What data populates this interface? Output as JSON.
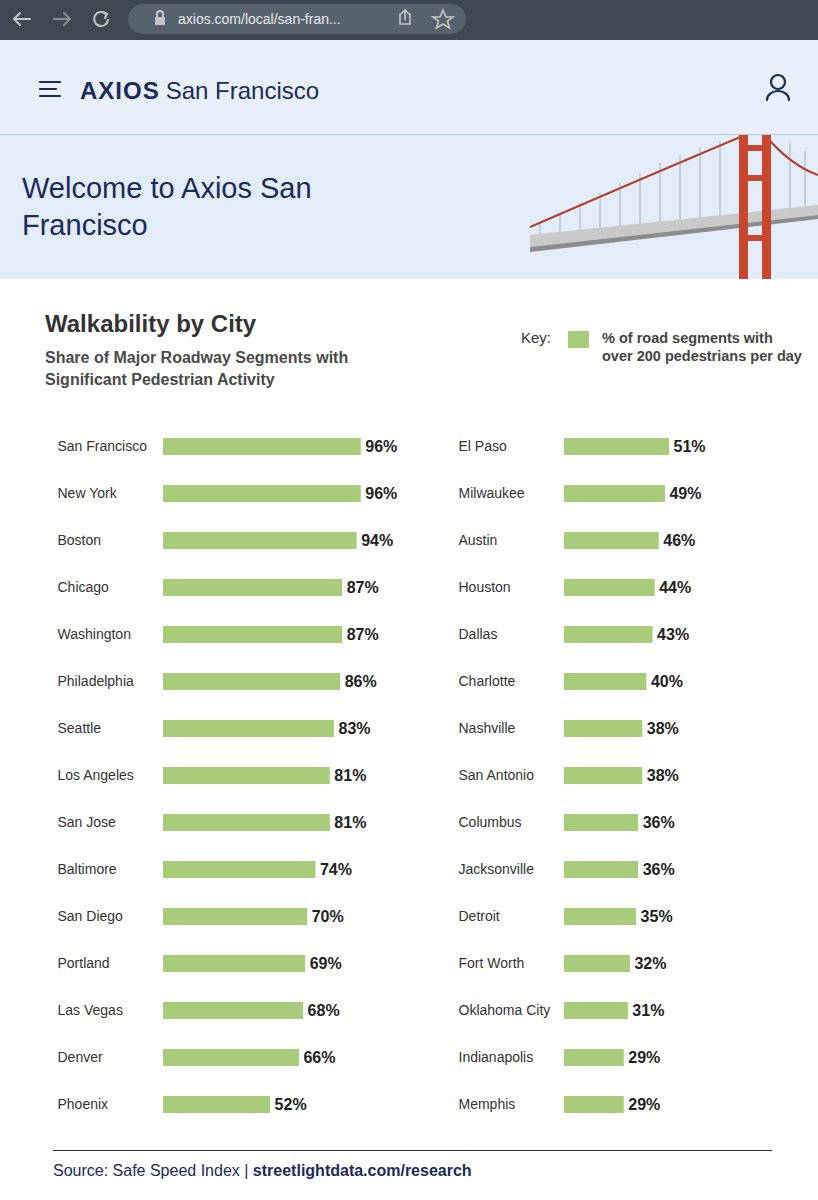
{
  "page": {
    "url": "axios.com/local/san-fran...",
    "brand": "AXIOS",
    "edition": "San Francisco",
    "welcome": "Welcome to Axios San Francisco",
    "source": "Source: Safe Speed Index |",
    "source_link": "streetlightdata.com/research"
  },
  "chart_data": {
    "type": "bar",
    "title": "Walkability by City",
    "subtitle": "Share of Major Roadway Segments with Significant Pedestrian Activity",
    "orientation": "horizontal",
    "data_labels": true,
    "tick_labels": "y",
    "legend": "top-right",
    "legend_title": "Key:",
    "xlim": [
      0,
      100
    ],
    "categories": [
      "San Francisco",
      "New York",
      "Boston",
      "Chicago",
      "Washington",
      "Philadelphia",
      "Seattle",
      "Los Angeles",
      "San Jose",
      "Baltimore",
      "San Diego",
      "Portland",
      "Las Vegas",
      "Denver",
      "Phoenix",
      "El Paso",
      "Milwaukee",
      "Austin",
      "Houston",
      "Dallas",
      "Charlotte",
      "Nashville",
      "San Antonio",
      "Columbus",
      "Jacksonville",
      "Detroit",
      "Fort Worth",
      "Oklahoma City",
      "Indianapolis",
      "Memphis"
    ],
    "series": [
      {
        "name": "% of road segments with over 200 pedestrians per day",
        "color": "#a8cc7a",
        "values": [
          96,
          96,
          94,
          87,
          87,
          86,
          83,
          81,
          81,
          74,
          70,
          69,
          68,
          66,
          52,
          51,
          49,
          46,
          44,
          43,
          40,
          38,
          38,
          36,
          36,
          35,
          32,
          31,
          29,
          29
        ],
        "value_labels": [
          "96%",
          "96%",
          "94%",
          "87%",
          "87%",
          "86%",
          "83%",
          "81%",
          "81%",
          "74%",
          "70%",
          "69%",
          "68%",
          "66%",
          "52%",
          "51%",
          "49%",
          "46%",
          "44%",
          "43%",
          "40%",
          "38%",
          "38%",
          "36%",
          "36%",
          "35%",
          "32%",
          "31%",
          "29%",
          "29%"
        ]
      }
    ]
  }
}
